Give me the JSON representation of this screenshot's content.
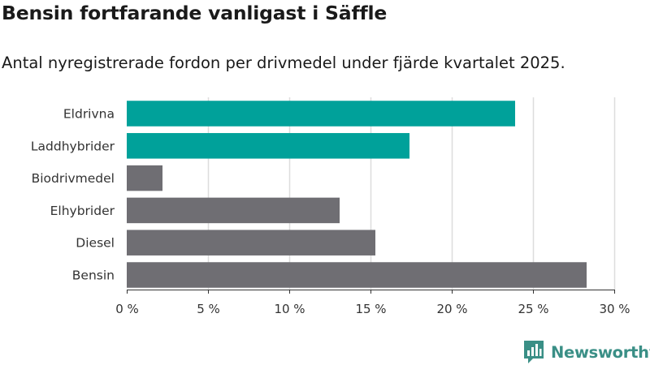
{
  "title": "Bensin fortfarande vanligast i Säffle",
  "subtitle": "Antal nyregistrerade fordon per drivmedel under fjärde kvartalet 2025.",
  "brand": {
    "name": "Newsworthy",
    "color": "#3a8f86"
  },
  "colors": {
    "highlight": "#00a19a",
    "default": "#6f6e73",
    "grid": "#dddddd"
  },
  "chart_data": {
    "type": "bar",
    "orientation": "horizontal",
    "title": "Bensin fortfarande vanligast i Säffle",
    "subtitle": "Antal nyregistrerade fordon per drivmedel under fjärde kvartalet 2025.",
    "categories": [
      "Eldrivna",
      "Laddhybrider",
      "Biodrivmedel",
      "Elhybrider",
      "Diesel",
      "Bensin"
    ],
    "values": [
      23.9,
      17.4,
      2.2,
      13.1,
      15.3,
      28.3
    ],
    "highlighted": [
      true,
      true,
      false,
      false,
      false,
      false
    ],
    "xlim": [
      0,
      30
    ],
    "xticks": [
      0,
      5,
      10,
      15,
      20,
      25,
      30
    ],
    "xtick_labels": [
      "0 %",
      "5 %",
      "10 %",
      "15 %",
      "20 %",
      "25 %",
      "30 %"
    ],
    "xlabel": "",
    "ylabel": "",
    "grid": true
  }
}
